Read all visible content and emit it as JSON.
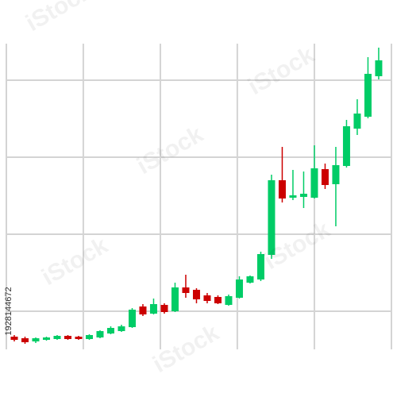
{
  "chart_data": {
    "type": "candlestick",
    "x": [
      1,
      2,
      3,
      4,
      5,
      6,
      7,
      8,
      9,
      10,
      11,
      12,
      13,
      14,
      15,
      16,
      17,
      18,
      19,
      20,
      21,
      22,
      23,
      24,
      25,
      26,
      27,
      28,
      29,
      30,
      31,
      32,
      33,
      34,
      35
    ],
    "open": [
      -32,
      -34,
      -38,
      -36,
      -35,
      -31,
      -32,
      -35,
      -33,
      -28,
      -25,
      -20,
      6,
      -3,
      8,
      0,
      30,
      27,
      20,
      18,
      8,
      17,
      36,
      40,
      71,
      165,
      143,
      144,
      143,
      179,
      160,
      183,
      230,
      245,
      296
    ],
    "high": [
      -30,
      -32,
      -33,
      -32,
      -30,
      -30,
      -31,
      -29,
      -24,
      -19,
      -17,
      4,
      9,
      16,
      10,
      36,
      46,
      29,
      23,
      20,
      21,
      44,
      45,
      75,
      172,
      207,
      178,
      176,
      209,
      186,
      207,
      241,
      267,
      320,
      332
    ],
    "low": [
      -38,
      -41,
      -40,
      -37,
      -36,
      -36,
      -36,
      -36,
      -34,
      -29,
      -26,
      -21,
      -6,
      -4,
      -3,
      -1,
      17,
      10,
      10,
      9,
      7,
      16,
      35,
      38,
      66,
      137,
      140,
      130,
      142,
      154,
      107,
      181,
      222,
      243,
      292
    ],
    "close": [
      -36,
      -39,
      -34,
      -33,
      -31,
      -35,
      -35,
      -30,
      -25,
      -21,
      -19,
      2,
      -4,
      9,
      -1,
      30,
      23,
      15,
      13,
      10,
      19,
      40,
      44,
      72,
      165,
      142,
      146,
      148,
      180,
      159,
      184,
      233,
      249,
      299,
      316
    ],
    "up_color": "#00cc66",
    "down_color": "#cc0000",
    "grid_color": "#d4d4d4",
    "grid": true,
    "xlim": [
      0.26,
      36.19
    ],
    "xticks": [
      0.26,
      7.44,
      14.63,
      21.81,
      29,
      36.19
    ],
    "ylim": [
      -48,
      337
    ],
    "yticks": [
      0,
      97,
      194,
      291
    ]
  },
  "watermark": "iStock",
  "image_id": "1928144672"
}
